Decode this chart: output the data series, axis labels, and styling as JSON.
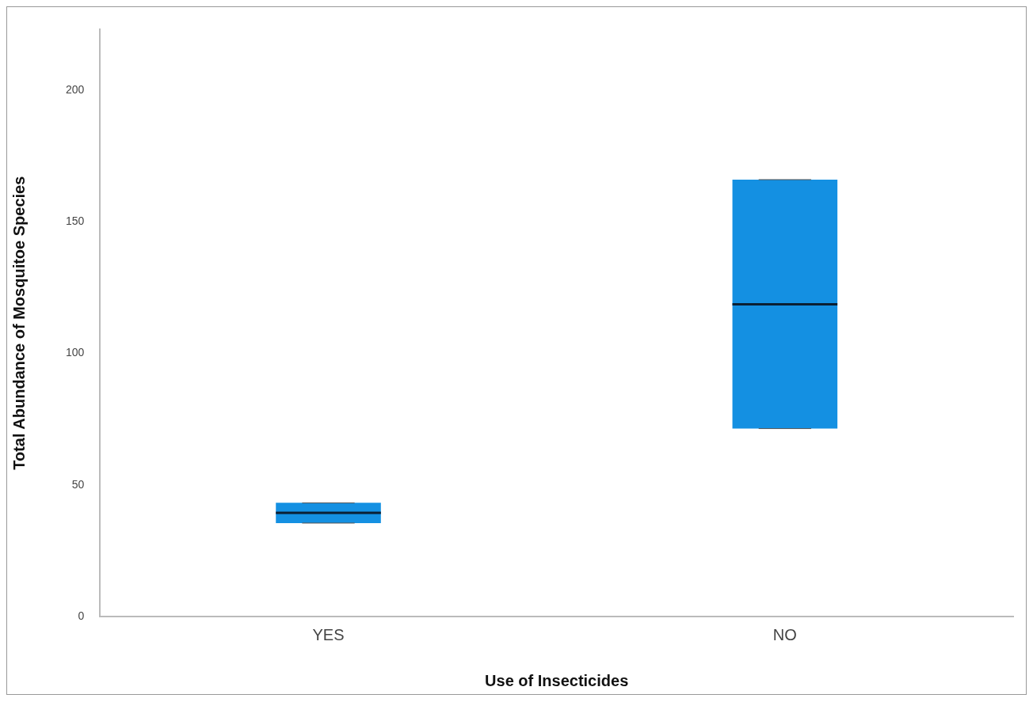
{
  "chart_data": {
    "type": "box",
    "xlabel": "Use of Insecticides",
    "ylabel": "Total Abundance of Mosquitoe Species",
    "categories": [
      "YES",
      "NO"
    ],
    "color": "#1490e2",
    "ylim": [
      0,
      223
    ],
    "yticks": [
      0,
      50,
      100,
      150,
      200
    ],
    "grid": false,
    "boxes": [
      {
        "low": 35.5,
        "q1": 35.5,
        "median": 39.4,
        "q3": 43.2,
        "high": 43.2
      },
      {
        "low": 71.4,
        "q1": 71.4,
        "median": 118.6,
        "q3": 166,
        "high": 166
      }
    ]
  }
}
